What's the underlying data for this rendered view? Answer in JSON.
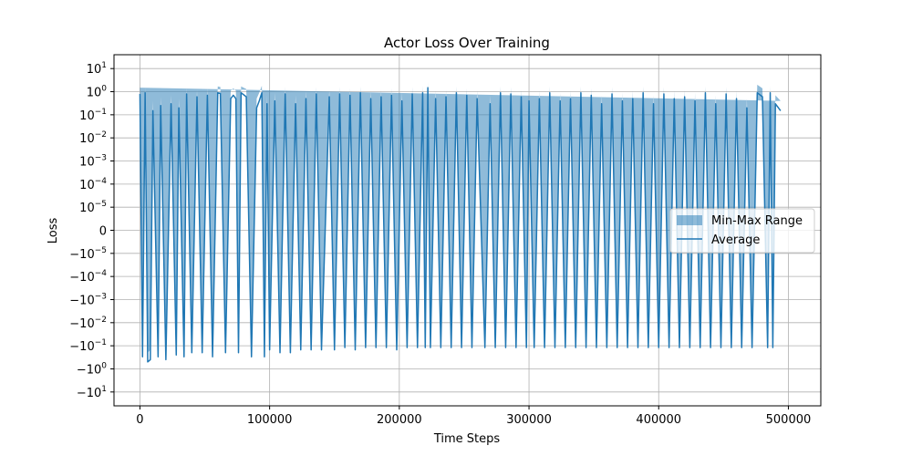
{
  "chart_data": {
    "type": "line",
    "title": "Actor Loss Over Training",
    "xlabel": "Time Steps",
    "ylabel": "Loss",
    "yscale": "symlog",
    "xlim": [
      -20000,
      525000
    ],
    "x_ticks": [
      {
        "value": 0,
        "label": "0"
      },
      {
        "value": 100000,
        "label": "100000"
      },
      {
        "value": 200000,
        "label": "200000"
      },
      {
        "value": 300000,
        "label": "300000"
      },
      {
        "value": 400000,
        "label": "400000"
      },
      {
        "value": 500000,
        "label": "500000"
      }
    ],
    "y_ticks": [
      {
        "value": 10,
        "base": "10",
        "exp": "1"
      },
      {
        "value": 1,
        "base": "10",
        "exp": "0"
      },
      {
        "value": 0.1,
        "base": "10",
        "exp": "−1"
      },
      {
        "value": 0.01,
        "base": "10",
        "exp": "−2"
      },
      {
        "value": 0.001,
        "base": "10",
        "exp": "−3"
      },
      {
        "value": 0.0001,
        "base": "10",
        "exp": "−4"
      },
      {
        "value": 1e-05,
        "base": "10",
        "exp": "−5"
      },
      {
        "value": 0,
        "base": "0",
        "exp": ""
      },
      {
        "value": -1e-05,
        "base": "−10",
        "exp": "−5"
      },
      {
        "value": -0.0001,
        "base": "−10",
        "exp": "−4"
      },
      {
        "value": -0.001,
        "base": "−10",
        "exp": "−3"
      },
      {
        "value": -0.01,
        "base": "−10",
        "exp": "−2"
      },
      {
        "value": -0.1,
        "base": "−10",
        "exp": "−1"
      },
      {
        "value": -1,
        "base": "−10",
        "exp": "0"
      },
      {
        "value": -10,
        "base": "−10",
        "exp": "1"
      }
    ],
    "grid": true,
    "legend_position": "center-right",
    "series": [
      {
        "name": "Min-Max Range",
        "kind": "band",
        "color": "#1f77b4",
        "opacity": 0.5
      },
      {
        "name": "Average",
        "kind": "line",
        "color": "#1f77b4"
      }
    ],
    "x": [
      0,
      2000,
      4000,
      6000,
      8000,
      10000,
      14000,
      16000,
      20000,
      24000,
      28000,
      30000,
      34000,
      36000,
      40000,
      44000,
      48000,
      52000,
      56000,
      60000,
      62000,
      66000,
      70000,
      72000,
      74000,
      76000,
      78000,
      82000,
      86000,
      90000,
      92000,
      94000,
      96000,
      98000,
      100000,
      104000,
      108000,
      112000,
      116000,
      120000,
      124000,
      128000,
      132000,
      136000,
      140000,
      146000,
      150000,
      154000,
      158000,
      162000,
      166000,
      170000,
      174000,
      178000,
      182000,
      186000,
      190000,
      194000,
      198000,
      202000,
      206000,
      210000,
      214000,
      218000,
      220000,
      222000,
      224000,
      228000,
      232000,
      236000,
      240000,
      244000,
      248000,
      252000,
      256000,
      260000,
      266000,
      270000,
      274000,
      278000,
      282000,
      286000,
      290000,
      294000,
      298000,
      300000,
      304000,
      308000,
      312000,
      316000,
      320000,
      324000,
      328000,
      332000,
      336000,
      340000,
      344000,
      348000,
      352000,
      356000,
      360000,
      364000,
      368000,
      372000,
      376000,
      380000,
      384000,
      388000,
      392000,
      396000,
      400000,
      404000,
      408000,
      412000,
      416000,
      420000,
      424000,
      428000,
      432000,
      436000,
      440000,
      444000,
      448000,
      452000,
      456000,
      460000,
      464000,
      468000,
      472000,
      476000,
      480000,
      484000,
      486000,
      488000,
      490000,
      494000,
      496000,
      498000,
      500000
    ],
    "average": [
      0.8,
      -0.3,
      0.9,
      -0.5,
      -0.4,
      0.15,
      -0.3,
      0.25,
      -0.4,
      0.3,
      -0.25,
      0.2,
      -0.3,
      0.8,
      -0.2,
      0.6,
      -0.2,
      0.7,
      -0.3,
      0.9,
      0.85,
      -0.2,
      0.5,
      0.7,
      0.5,
      -0.2,
      0.9,
      0.6,
      -0.3,
      0.2,
      0.4,
      0.9,
      -0.3,
      0.3,
      -0.15,
      0.4,
      -0.2,
      0.8,
      -0.2,
      0.3,
      -0.15,
      0.5,
      -0.15,
      0.8,
      -0.15,
      0.6,
      -0.15,
      0.8,
      -0.12,
      0.7,
      -0.15,
      0.9,
      -0.12,
      0.5,
      -0.12,
      0.6,
      -0.12,
      0.7,
      -0.15,
      0.4,
      -0.12,
      0.8,
      -0.12,
      0.9,
      -0.12,
      1.5,
      -0.12,
      0.5,
      -0.12,
      0.6,
      -0.12,
      0.9,
      -0.12,
      0.7,
      -0.12,
      0.5,
      -0.12,
      0.3,
      -0.12,
      0.9,
      -0.12,
      0.8,
      -0.12,
      0.6,
      -0.12,
      0.4,
      -0.12,
      0.5,
      -0.12,
      0.9,
      -0.12,
      0.4,
      -0.12,
      0.5,
      -0.12,
      0.9,
      -0.12,
      0.7,
      -0.12,
      0.3,
      -0.12,
      0.8,
      -0.12,
      0.4,
      -0.12,
      0.5,
      -0.12,
      0.9,
      -0.12,
      0.3,
      -0.12,
      0.8,
      -0.12,
      0.5,
      -0.12,
      0.6,
      -0.12,
      0.4,
      -0.12,
      0.9,
      -0.12,
      0.3,
      -0.12,
      0.8,
      -0.12,
      0.5,
      -0.12,
      0.2,
      -0.12,
      0.9,
      0.6,
      -0.12,
      0.9,
      -0.12,
      0.3,
      0.15
    ],
    "min": [
      0.2,
      -0.8,
      0.3,
      -1.2,
      -1.0,
      0.05,
      -0.8,
      0.08,
      -1.0,
      0.1,
      -0.7,
      0.06,
      -0.8,
      0.3,
      -0.6,
      0.2,
      -0.6,
      0.25,
      -0.9,
      0.4,
      0.35,
      -0.6,
      0.15,
      0.25,
      0.15,
      -0.6,
      0.3,
      0.2,
      -0.9,
      0.05,
      0.1,
      0.35,
      -1.0,
      0.1,
      -0.5,
      0.12,
      -0.7,
      0.3,
      -0.7,
      0.1,
      -0.4,
      0.15,
      -0.4,
      0.3,
      -0.35,
      0.2,
      -0.3,
      0.3,
      -0.25,
      0.25,
      -0.3,
      0.35,
      -0.25,
      0.15,
      -0.25,
      0.2,
      -0.25,
      0.25,
      -0.3,
      0.12,
      -0.25,
      0.3,
      -0.25,
      0.35,
      -0.25,
      0.6,
      -0.25,
      0.15,
      -0.25,
      0.2,
      -0.25,
      0.35,
      -0.25,
      0.25,
      -0.25,
      0.15,
      -0.25,
      0.1,
      -0.25,
      0.35,
      -0.25,
      0.3,
      -0.25,
      0.2,
      -0.25,
      0.12,
      -0.25,
      0.15,
      -0.25,
      0.35,
      -0.25,
      0.12,
      -0.25,
      0.15,
      -0.25,
      0.35,
      -0.25,
      0.25,
      -0.25,
      0.1,
      -0.25,
      0.3,
      -0.25,
      0.12,
      -0.25,
      0.15,
      -0.25,
      0.35,
      -0.25,
      0.1,
      -0.25,
      0.3,
      -0.25,
      0.15,
      -0.25,
      0.2,
      -0.25,
      0.12,
      -0.25,
      0.35,
      -0.25,
      0.1,
      -0.25,
      0.3,
      -0.25,
      0.15,
      -0.25,
      0.06,
      -0.25,
      0.35,
      0.2,
      -0.25,
      0.35,
      -0.25,
      0.1,
      0.05
    ],
    "max": [
      1.5,
      -0.1,
      1.6,
      -0.2,
      -0.15,
      0.4,
      -0.1,
      0.6,
      -0.15,
      0.7,
      -0.1,
      0.5,
      -0.1,
      1.5,
      -0.08,
      1.2,
      -0.08,
      1.4,
      -0.1,
      1.7,
      1.6,
      -0.08,
      1.1,
      1.4,
      1.1,
      -0.08,
      1.7,
      1.3,
      -0.1,
      0.5,
      0.9,
      1.8,
      -0.1,
      0.7,
      -0.06,
      0.9,
      -0.08,
      1.6,
      -0.08,
      0.7,
      -0.06,
      1.1,
      -0.06,
      1.6,
      -0.06,
      1.2,
      -0.06,
      1.6,
      -0.05,
      1.4,
      -0.06,
      1.7,
      -0.05,
      1.1,
      -0.05,
      1.2,
      -0.05,
      1.4,
      -0.06,
      0.9,
      -0.05,
      1.6,
      -0.05,
      1.8,
      -0.05,
      2.6,
      -0.05,
      1.1,
      -0.05,
      1.2,
      -0.05,
      1.7,
      -0.05,
      1.4,
      -0.05,
      1.1,
      -0.05,
      0.7,
      -0.05,
      1.7,
      -0.05,
      1.6,
      -0.05,
      1.2,
      -0.05,
      0.9,
      -0.05,
      1.1,
      -0.05,
      1.7,
      -0.05,
      0.9,
      -0.05,
      1.1,
      -0.05,
      1.7,
      -0.05,
      1.4,
      -0.05,
      0.7,
      -0.05,
      1.6,
      -0.05,
      0.9,
      -0.05,
      1.1,
      -0.05,
      1.7,
      -0.05,
      0.7,
      -0.05,
      1.6,
      -0.05,
      1.1,
      -0.05,
      1.2,
      -0.05,
      0.9,
      -0.05,
      1.7,
      -0.05,
      0.7,
      -0.05,
      1.6,
      -0.05,
      1.1,
      -0.05,
      0.5,
      -0.05,
      2.0,
      1.4,
      -0.05,
      1.8,
      -0.05,
      0.7,
      0.4
    ]
  }
}
